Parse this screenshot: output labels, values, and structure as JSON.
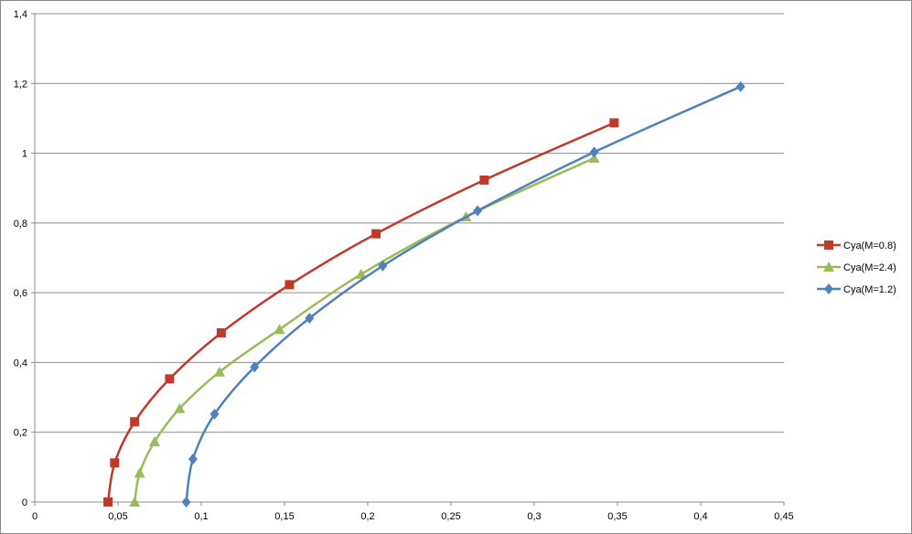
{
  "chart_data": {
    "type": "scatter",
    "title": "",
    "xlabel": "",
    "ylabel": "",
    "xlim": [
      0,
      0.45
    ],
    "ylim": [
      0,
      1.4
    ],
    "x_ticks": [
      0,
      0.05,
      0.1,
      0.15,
      0.2,
      0.25,
      0.3,
      0.35,
      0.4,
      0.45
    ],
    "x_tick_labels": [
      "0",
      "0,05",
      "0,1",
      "0,15",
      "0,2",
      "0,25",
      "0,3",
      "0,35",
      "0,4",
      "0,45"
    ],
    "y_ticks": [
      0,
      0.2,
      0.4,
      0.6,
      0.8,
      1.0,
      1.2,
      1.4
    ],
    "y_tick_labels": [
      "0",
      "0,2",
      "0,4",
      "0,6",
      "0,8",
      "1",
      "1,2",
      "1,4"
    ],
    "grid": "horizontal",
    "legend_position": "right",
    "series": [
      {
        "name": "Cya(M=0.8)",
        "color": "#c0392b",
        "marker": "square",
        "x": [
          0.044,
          0.048,
          0.06,
          0.081,
          0.112,
          0.153,
          0.205,
          0.27,
          0.348
        ],
        "y": [
          0.0,
          0.112,
          0.23,
          0.353,
          0.485,
          0.623,
          0.769,
          0.923,
          1.087
        ]
      },
      {
        "name": "Cya(M=2.4)",
        "color": "#9bbb59",
        "marker": "triangle",
        "x": [
          0.06,
          0.063,
          0.072,
          0.087,
          0.111,
          0.147,
          0.196,
          0.259,
          0.336
        ],
        "y": [
          0.0,
          0.083,
          0.173,
          0.268,
          0.373,
          0.495,
          0.653,
          0.818,
          0.986
        ]
      },
      {
        "name": "Cya(M=1.2)",
        "color": "#4f81bd",
        "marker": "diamond",
        "x": [
          0.091,
          0.095,
          0.108,
          0.132,
          0.165,
          0.209,
          0.266,
          0.336,
          0.424
        ],
        "y": [
          0.0,
          0.123,
          0.252,
          0.387,
          0.527,
          0.677,
          0.835,
          1.003,
          1.191
        ]
      }
    ]
  }
}
